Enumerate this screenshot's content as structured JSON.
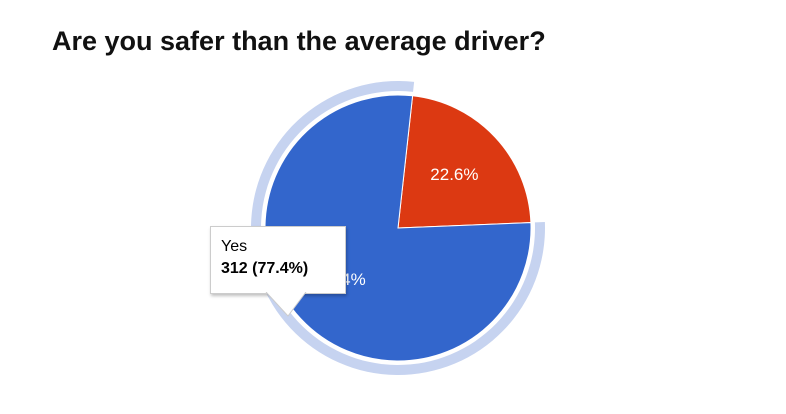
{
  "title": "Are you safer than the average driver?",
  "chart_data": {
    "type": "pie",
    "slices": [
      {
        "label": "Yes",
        "count": 312,
        "percent": 77.4,
        "color": "#3366cc",
        "highlighted": true
      },
      {
        "label": "",
        "percent": 22.6,
        "color": "#dc3912",
        "highlighted": false
      }
    ],
    "slice_labels": [
      "77.4%",
      "22.6%"
    ],
    "highlight_ring_color": "#c6d3f0"
  },
  "tooltip": {
    "label": "Yes",
    "value": "312 (77.4%)"
  }
}
